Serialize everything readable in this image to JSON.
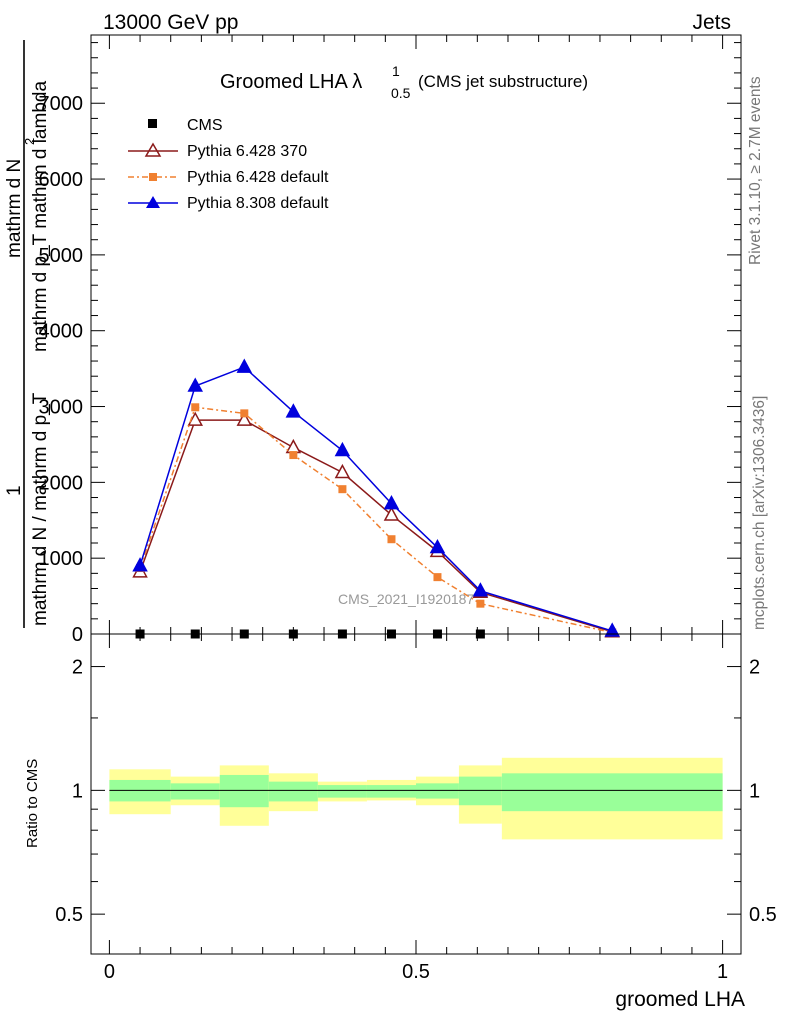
{
  "header": {
    "energy_label": "13000 GeV pp",
    "category_label": "Jets"
  },
  "side_labels": {
    "rivet": "Rivet 3.1.10, ≥ 2.7M events",
    "mcplots": "mcplots.cern.ch [arXiv:1306.3436]"
  },
  "watermark": "CMS_2021_I1920187",
  "chart_data": [
    {
      "type": "line",
      "title_main": "Groomed LHA",
      "title_lambda": "λ",
      "title_sup": "1",
      "title_sub": "0.5",
      "title_tail": "(CMS jet substructure)",
      "ylabel_lines": [
        "mathrm d²N",
        "mathrm d p_T mathrm d lambda",
        "1",
        "mathrm d N / mathrm d p_T"
      ],
      "ylabel_line1": "mathrm d",
      "ylabel_sup": "2",
      "ylabel_line1_tail": "N",
      "ylabel_line2": "mathrm d p_T mathrm d lambda",
      "ylabel_one": "1",
      "ylabel_line3": "mathrm d N / mathrm d p_T",
      "xlim": [
        -0.03,
        1.03
      ],
      "ylim": [
        0,
        7900
      ],
      "yticks": [
        0,
        1000,
        2000,
        3000,
        4000,
        5000,
        6000,
        7000
      ],
      "ytick_labels": [
        "0",
        "1000",
        "2000",
        "3000",
        "4000",
        "5000",
        "6000",
        "7000"
      ],
      "legend_position": "top-left",
      "series": [
        {
          "name": "CMS",
          "color": "#000000",
          "marker": "square",
          "x": [
            0.05,
            0.14,
            0.22,
            0.3,
            0.38,
            0.46,
            0.535,
            0.605
          ],
          "y": [
            0,
            0,
            0,
            0,
            0,
            0,
            0,
            0
          ]
        },
        {
          "name": "Pythia 6.428 370",
          "color": "#8b1a1a",
          "marker": "open-triangle",
          "x": [
            0.05,
            0.14,
            0.22,
            0.3,
            0.38,
            0.46,
            0.535,
            0.605,
            0.82
          ],
          "y": [
            820,
            2820,
            2820,
            2460,
            2130,
            1570,
            1090,
            550,
            30
          ]
        },
        {
          "name": "Pythia 6.428 default",
          "color": "#f08030",
          "marker": "square",
          "dashed": true,
          "x": [
            0.05,
            0.14,
            0.22,
            0.3,
            0.38,
            0.46,
            0.535,
            0.605,
            0.82
          ],
          "y": [
            870,
            2990,
            2910,
            2360,
            1910,
            1250,
            750,
            400,
            20
          ]
        },
        {
          "name": "Pythia 8.308 default",
          "color": "#0000dd",
          "marker": "triangle",
          "x": [
            0.05,
            0.14,
            0.22,
            0.3,
            0.38,
            0.46,
            0.535,
            0.605,
            0.82
          ],
          "y": [
            900,
            3270,
            3520,
            2930,
            2420,
            1720,
            1140,
            570,
            40
          ]
        }
      ]
    },
    {
      "type": "area",
      "ylabel": "Ratio to CMS",
      "xlabel": "groomed LHA",
      "xlim": [
        -0.03,
        1.03
      ],
      "ylim": [
        0.4,
        2.4
      ],
      "log_y": true,
      "yticks": [
        0.5,
        1,
        2
      ],
      "ytick_labels": [
        "0.5",
        "1",
        "2"
      ],
      "xticks": [
        0,
        0.5,
        1
      ],
      "xtick_labels": [
        "0",
        "0.5",
        "1"
      ],
      "reference_line": 1,
      "bands": [
        {
          "x0": 0.0,
          "x1": 0.1,
          "inner": [
            0.94,
            1.06
          ],
          "outer": [
            0.875,
            1.125
          ]
        },
        {
          "x0": 0.1,
          "x1": 0.18,
          "inner": [
            0.95,
            1.04
          ],
          "outer": [
            0.92,
            1.08
          ]
        },
        {
          "x0": 0.18,
          "x1": 0.26,
          "inner": [
            0.91,
            1.09
          ],
          "outer": [
            0.82,
            1.15
          ]
        },
        {
          "x0": 0.26,
          "x1": 0.34,
          "inner": [
            0.94,
            1.05
          ],
          "outer": [
            0.89,
            1.1
          ]
        },
        {
          "x0": 0.34,
          "x1": 0.42,
          "inner": [
            0.96,
            1.03
          ],
          "outer": [
            0.94,
            1.05
          ]
        },
        {
          "x0": 0.42,
          "x1": 0.5,
          "inner": [
            0.96,
            1.03
          ],
          "outer": [
            0.945,
            1.06
          ]
        },
        {
          "x0": 0.5,
          "x1": 0.57,
          "inner": [
            0.955,
            1.04
          ],
          "outer": [
            0.92,
            1.08
          ]
        },
        {
          "x0": 0.57,
          "x1": 0.64,
          "inner": [
            0.92,
            1.08
          ],
          "outer": [
            0.83,
            1.15
          ]
        },
        {
          "x0": 0.64,
          "x1": 1.0,
          "inner": [
            0.89,
            1.1
          ],
          "outer": [
            0.76,
            1.2
          ]
        }
      ],
      "band_colors": {
        "inner": "#99ff99",
        "outer": "#ffff99"
      }
    }
  ]
}
